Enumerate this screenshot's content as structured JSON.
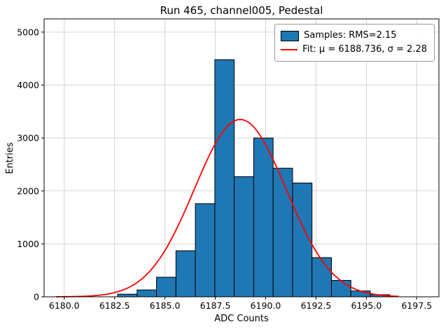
{
  "title": "Run 465, channel005, Pedestal",
  "chart_data": {
    "type": "bar",
    "subtype": "histogram",
    "title": "Run 465, channel005, Pedestal",
    "xlabel": "ADC Counts",
    "ylabel": "Entries",
    "xlim": [
      6179.0,
      6198.6
    ],
    "ylim": [
      0,
      5250
    ],
    "xticks": [
      6180.0,
      6182.5,
      6185.0,
      6187.5,
      6190.0,
      6192.5,
      6195.0,
      6197.5
    ],
    "xtick_labels": [
      "6180.0",
      "6182.5",
      "6185.0",
      "6187.5",
      "6190.0",
      "6192.5",
      "6195.0",
      "6197.5"
    ],
    "yticks": [
      0,
      1000,
      2000,
      3000,
      4000,
      5000
    ],
    "ytick_labels": [
      "0",
      "1000",
      "2000",
      "3000",
      "4000",
      "5000"
    ],
    "grid": true,
    "grid_color": "#c9c9c9",
    "bar_color": "#1f77b4",
    "bar_edge_color": "#000000",
    "fit_color": "#ff0000",
    "bins": {
      "start": 6182.65,
      "width": 0.965,
      "counts": [
        50,
        130,
        370,
        870,
        1760,
        4480,
        2270,
        3000,
        2430,
        2150,
        740,
        310,
        110,
        40
      ]
    },
    "fit": {
      "mu": 6188.736,
      "sigma": 2.28,
      "amplitude": 3350,
      "x_start": 6179.6,
      "x_end": 6196.6
    },
    "legend": {
      "position": "upper right",
      "entries": [
        {
          "type": "patch",
          "label": "Samples: RMS=2.15",
          "color": "#1f77b4"
        },
        {
          "type": "line",
          "label": "Fit: μ = 6188.736, σ = 2.28",
          "color": "#ff0000"
        }
      ]
    }
  }
}
